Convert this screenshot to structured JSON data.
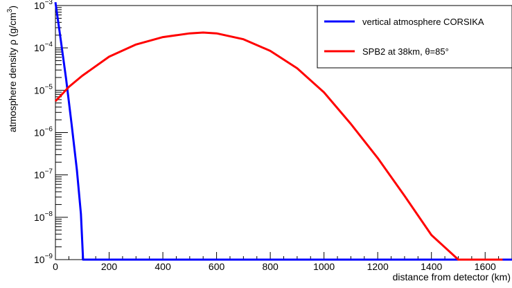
{
  "chart_data": {
    "type": "line",
    "xlabel": "distance from detector (km)",
    "ylabel_main": "atmosphere density ρ (g/cm",
    "ylabel_sup": "3",
    "ylabel_tail": ")",
    "x_range": [
      0,
      1700
    ],
    "y_range": [
      1e-09,
      0.001
    ],
    "y_scale": "log",
    "grid": false,
    "legend_position": "top-right",
    "x_ticks": [
      {
        "value": 0,
        "label": "0"
      },
      {
        "value": 200,
        "label": "200"
      },
      {
        "value": 400,
        "label": "400"
      },
      {
        "value": 600,
        "label": "600"
      },
      {
        "value": 800,
        "label": "800"
      },
      {
        "value": 1000,
        "label": "1000"
      },
      {
        "value": 1200,
        "label": "1200"
      },
      {
        "value": 1400,
        "label": "1400"
      },
      {
        "value": 1600,
        "label": "1600"
      }
    ],
    "y_ticks": [
      {
        "exp": -9,
        "base": "10",
        "sup": "−9"
      },
      {
        "exp": -8,
        "base": "10",
        "sup": "−8"
      },
      {
        "exp": -7,
        "base": "10",
        "sup": "−7"
      },
      {
        "exp": -6,
        "base": "10",
        "sup": "−6"
      },
      {
        "exp": -5,
        "base": "10",
        "sup": "−5"
      },
      {
        "exp": -4,
        "base": "10",
        "sup": "−4"
      },
      {
        "exp": -3,
        "base": "10",
        "sup": "−3"
      }
    ],
    "series": [
      {
        "name": "vertical atmosphere CORSIKA",
        "color": "#0000ff",
        "points": [
          [
            0,
            0.0012
          ],
          [
            20,
            0.00015
          ],
          [
            40,
            1.8e-05
          ],
          [
            60,
            1.6e-06
          ],
          [
            80,
            1.3e-07
          ],
          [
            95,
            1.2e-08
          ],
          [
            103,
            1e-09
          ],
          [
            1700,
            1e-09
          ]
        ]
      },
      {
        "name": "SPB2 at 38km, θ=85°",
        "color": "#ff0000",
        "points": [
          [
            0,
            5.5e-06
          ],
          [
            20,
            7.5e-06
          ],
          [
            50,
            1.2e-05
          ],
          [
            100,
            2.2e-05
          ],
          [
            200,
            6.2e-05
          ],
          [
            300,
            0.00012
          ],
          [
            400,
            0.00018
          ],
          [
            500,
            0.00022
          ],
          [
            550,
            0.00023
          ],
          [
            600,
            0.00022
          ],
          [
            700,
            0.00016
          ],
          [
            800,
            8.5e-05
          ],
          [
            900,
            3.3e-05
          ],
          [
            1000,
            8.9e-06
          ],
          [
            1100,
            1.6e-06
          ],
          [
            1200,
            2.5e-07
          ],
          [
            1300,
            3.2e-08
          ],
          [
            1400,
            3.8e-09
          ],
          [
            1500,
            4.3e-10
          ],
          [
            1590,
            4e-11
          ],
          [
            1610,
            1e-09
          ],
          [
            1665,
            1e-09
          ]
        ]
      }
    ]
  }
}
